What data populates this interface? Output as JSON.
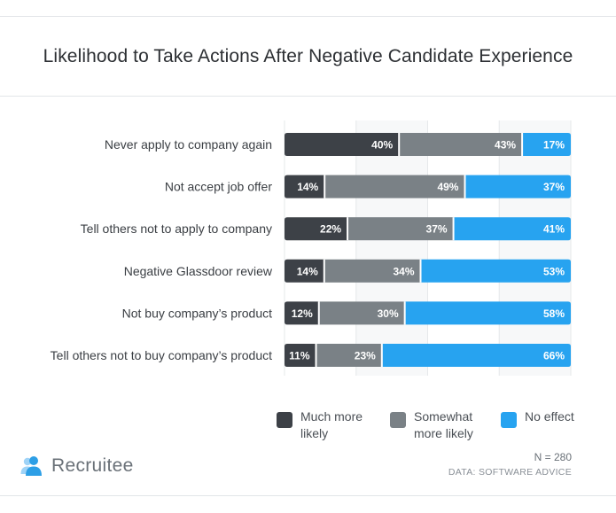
{
  "header": {
    "title": "Likelihood to Take Actions After Negative Candidate Experience"
  },
  "chart_data": {
    "type": "bar",
    "orientation": "horizontal",
    "stacked": true,
    "title": "Likelihood to Take Actions After Negative Candidate Experience",
    "categories": [
      "Never apply to company again",
      "Not accept job offer",
      "Tell others not to apply to company",
      "Negative Glassdoor review",
      "Not buy company’s product",
      "Tell others not to buy company’s product"
    ],
    "series": [
      {
        "name": "Much more likely",
        "color": "#3d4147",
        "values": [
          40,
          14,
          22,
          14,
          12,
          11
        ]
      },
      {
        "name": "Somewhat more likely",
        "color": "#7a8186",
        "values": [
          43,
          49,
          37,
          34,
          30,
          23
        ]
      },
      {
        "name": "No effect",
        "color": "#27a3f0",
        "values": [
          17,
          37,
          41,
          53,
          58,
          66
        ]
      }
    ],
    "value_suffix": "%",
    "xlim": [
      0,
      100
    ],
    "legend_position": "bottom"
  },
  "legend": {
    "much_more_likely": "Much more likely",
    "somewhat_more_likely": "Somewhat more likely",
    "no_effect": "No effect"
  },
  "footer": {
    "brand": "Recruitee",
    "n": "N = 280",
    "source": "DATA: SOFTWARE ADVICE"
  }
}
